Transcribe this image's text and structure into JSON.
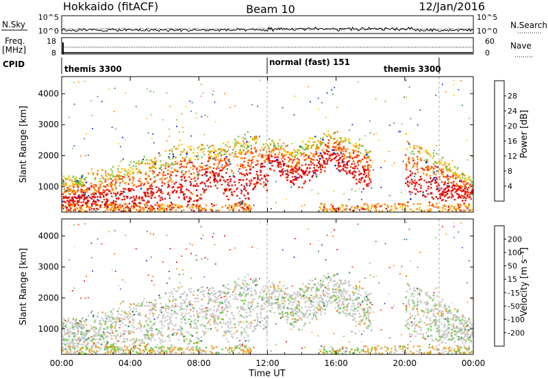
{
  "header": {
    "station": "Hokkaido (fitACF)",
    "beam": "Beam 10",
    "date": "12/Jan/2016"
  },
  "top_panels": {
    "nsky_label": "N.Sky",
    "nsky_ticks": [
      "10^5",
      "10^0"
    ],
    "nsearch_label": "N.Search",
    "nsearch_ticks": [
      "10^5",
      "10^0"
    ],
    "freq_label_1": "Freq.",
    "freq_label_2": "[MHz]",
    "freq_ticks": [
      "18",
      "8"
    ],
    "nave_label": "Nave",
    "nave_ticks": [
      "60",
      "0"
    ],
    "cpid_label": "CPID",
    "cpid_segments": [
      {
        "label": "themis 3300",
        "start": 0,
        "end": 12
      },
      {
        "label": "normal (fast) 151",
        "start": 12,
        "end": 22
      },
      {
        "label": "themis 3300",
        "start": 22,
        "end": 24
      }
    ]
  },
  "chart_data": [
    {
      "type": "heatmap",
      "quantity": "Power",
      "ylabel": "Slant Range [km]",
      "xlabel": "",
      "ylim": [
        180,
        4550
      ],
      "yticks": [
        1000,
        2000,
        3000,
        4000
      ],
      "xlim": [
        0,
        24
      ],
      "xticks": [
        "00:00",
        "04:00",
        "08:00",
        "12:00",
        "16:00",
        "20:00",
        "00:00"
      ],
      "colorbar": {
        "label": "Power [dB]",
        "ticks": [
          "28",
          "24",
          "20",
          "16",
          "12",
          "8",
          "4"
        ],
        "colors": [
          "#e00000",
          "#ff3000",
          "#ff8a00",
          "#ffc800",
          "#7ac842",
          "#2e8b57",
          "#1f4fa0",
          "#0020ff"
        ]
      }
    },
    {
      "type": "heatmap",
      "quantity": "Velocity",
      "ylabel": "Slant Range [km]",
      "xlabel": "Time UT",
      "ylim": [
        180,
        4550
      ],
      "yticks": [
        1000,
        2000,
        3000,
        4000
      ],
      "xlim": [
        0,
        24
      ],
      "xticks": [
        "00:00",
        "04:00",
        "08:00",
        "12:00",
        "16:00",
        "20:00",
        "00:00"
      ],
      "colorbar": {
        "label": "Velocity [m s⁻¹]",
        "ticks": [
          "200",
          "100",
          "50",
          "15",
          "-15",
          "-50",
          "-100",
          "-200"
        ],
        "colors": [
          "#1e3cc8",
          "#3c7ad6",
          "#2e8b57",
          "#5ccd3c",
          "#c8c8c8",
          "#f0a020",
          "#ff7000",
          "#ff3000",
          "#e00000"
        ]
      }
    }
  ]
}
